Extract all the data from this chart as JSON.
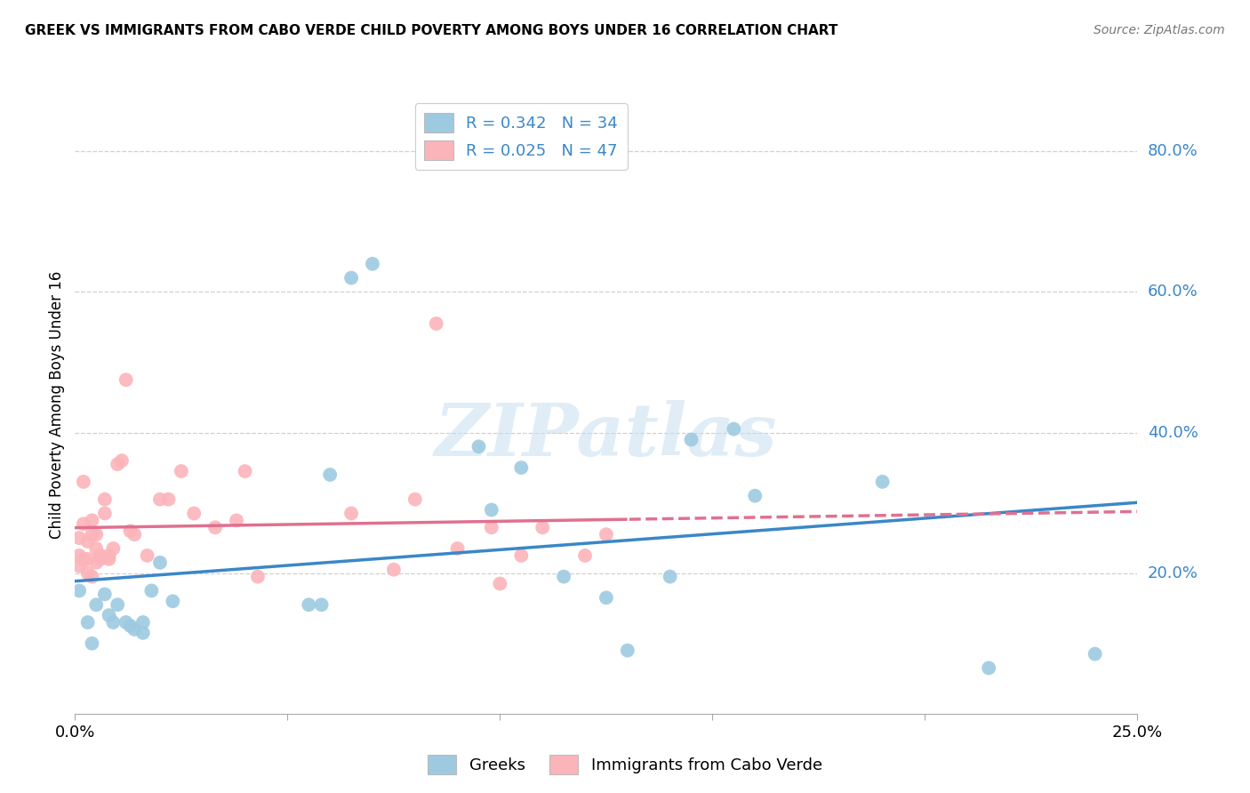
{
  "title": "GREEK VS IMMIGRANTS FROM CABO VERDE CHILD POVERTY AMONG BOYS UNDER 16 CORRELATION CHART",
  "source": "Source: ZipAtlas.com",
  "ylabel": "Child Poverty Among Boys Under 16",
  "xlim": [
    0.0,
    0.25
  ],
  "ylim": [
    0.0,
    0.88
  ],
  "legend_label1": "Greeks",
  "legend_label2": "Immigrants from Cabo Verde",
  "R1": 0.342,
  "N1": 34,
  "R2": 0.025,
  "N2": 47,
  "color_blue": "#9ecae1",
  "color_pink": "#fbb4b9",
  "line_blue": "#3a87c8",
  "line_pink": "#e07090",
  "watermark": "ZIPatlas",
  "blue_points_x": [
    0.001,
    0.003,
    0.004,
    0.005,
    0.007,
    0.008,
    0.009,
    0.01,
    0.012,
    0.013,
    0.014,
    0.016,
    0.016,
    0.018,
    0.02,
    0.023,
    0.055,
    0.058,
    0.06,
    0.065,
    0.07,
    0.095,
    0.098,
    0.105,
    0.115,
    0.125,
    0.13,
    0.14,
    0.145,
    0.155,
    0.16,
    0.19,
    0.215,
    0.24
  ],
  "blue_points_y": [
    0.175,
    0.13,
    0.1,
    0.155,
    0.17,
    0.14,
    0.13,
    0.155,
    0.13,
    0.125,
    0.12,
    0.13,
    0.115,
    0.175,
    0.215,
    0.16,
    0.155,
    0.155,
    0.34,
    0.62,
    0.64,
    0.38,
    0.29,
    0.35,
    0.195,
    0.165,
    0.09,
    0.195,
    0.39,
    0.405,
    0.31,
    0.33,
    0.065,
    0.085
  ],
  "pink_points_x": [
    0.001,
    0.001,
    0.001,
    0.002,
    0.002,
    0.002,
    0.003,
    0.003,
    0.003,
    0.004,
    0.004,
    0.004,
    0.005,
    0.005,
    0.005,
    0.006,
    0.006,
    0.007,
    0.007,
    0.008,
    0.008,
    0.009,
    0.01,
    0.011,
    0.012,
    0.013,
    0.014,
    0.017,
    0.02,
    0.022,
    0.025,
    0.028,
    0.033,
    0.038,
    0.04,
    0.043,
    0.065,
    0.075,
    0.08,
    0.085,
    0.09,
    0.098,
    0.1,
    0.105,
    0.11,
    0.12,
    0.125
  ],
  "pink_points_y": [
    0.225,
    0.21,
    0.25,
    0.27,
    0.33,
    0.22,
    0.2,
    0.22,
    0.245,
    0.255,
    0.275,
    0.195,
    0.215,
    0.235,
    0.255,
    0.22,
    0.225,
    0.285,
    0.305,
    0.22,
    0.225,
    0.235,
    0.355,
    0.36,
    0.475,
    0.26,
    0.255,
    0.225,
    0.305,
    0.305,
    0.345,
    0.285,
    0.265,
    0.275,
    0.345,
    0.195,
    0.285,
    0.205,
    0.305,
    0.555,
    0.235,
    0.265,
    0.185,
    0.225,
    0.265,
    0.225,
    0.255
  ],
  "ytick_values": [
    0.2,
    0.4,
    0.6,
    0.8
  ],
  "xtick_positions": [
    0.0,
    0.05,
    0.1,
    0.15,
    0.2,
    0.25
  ]
}
